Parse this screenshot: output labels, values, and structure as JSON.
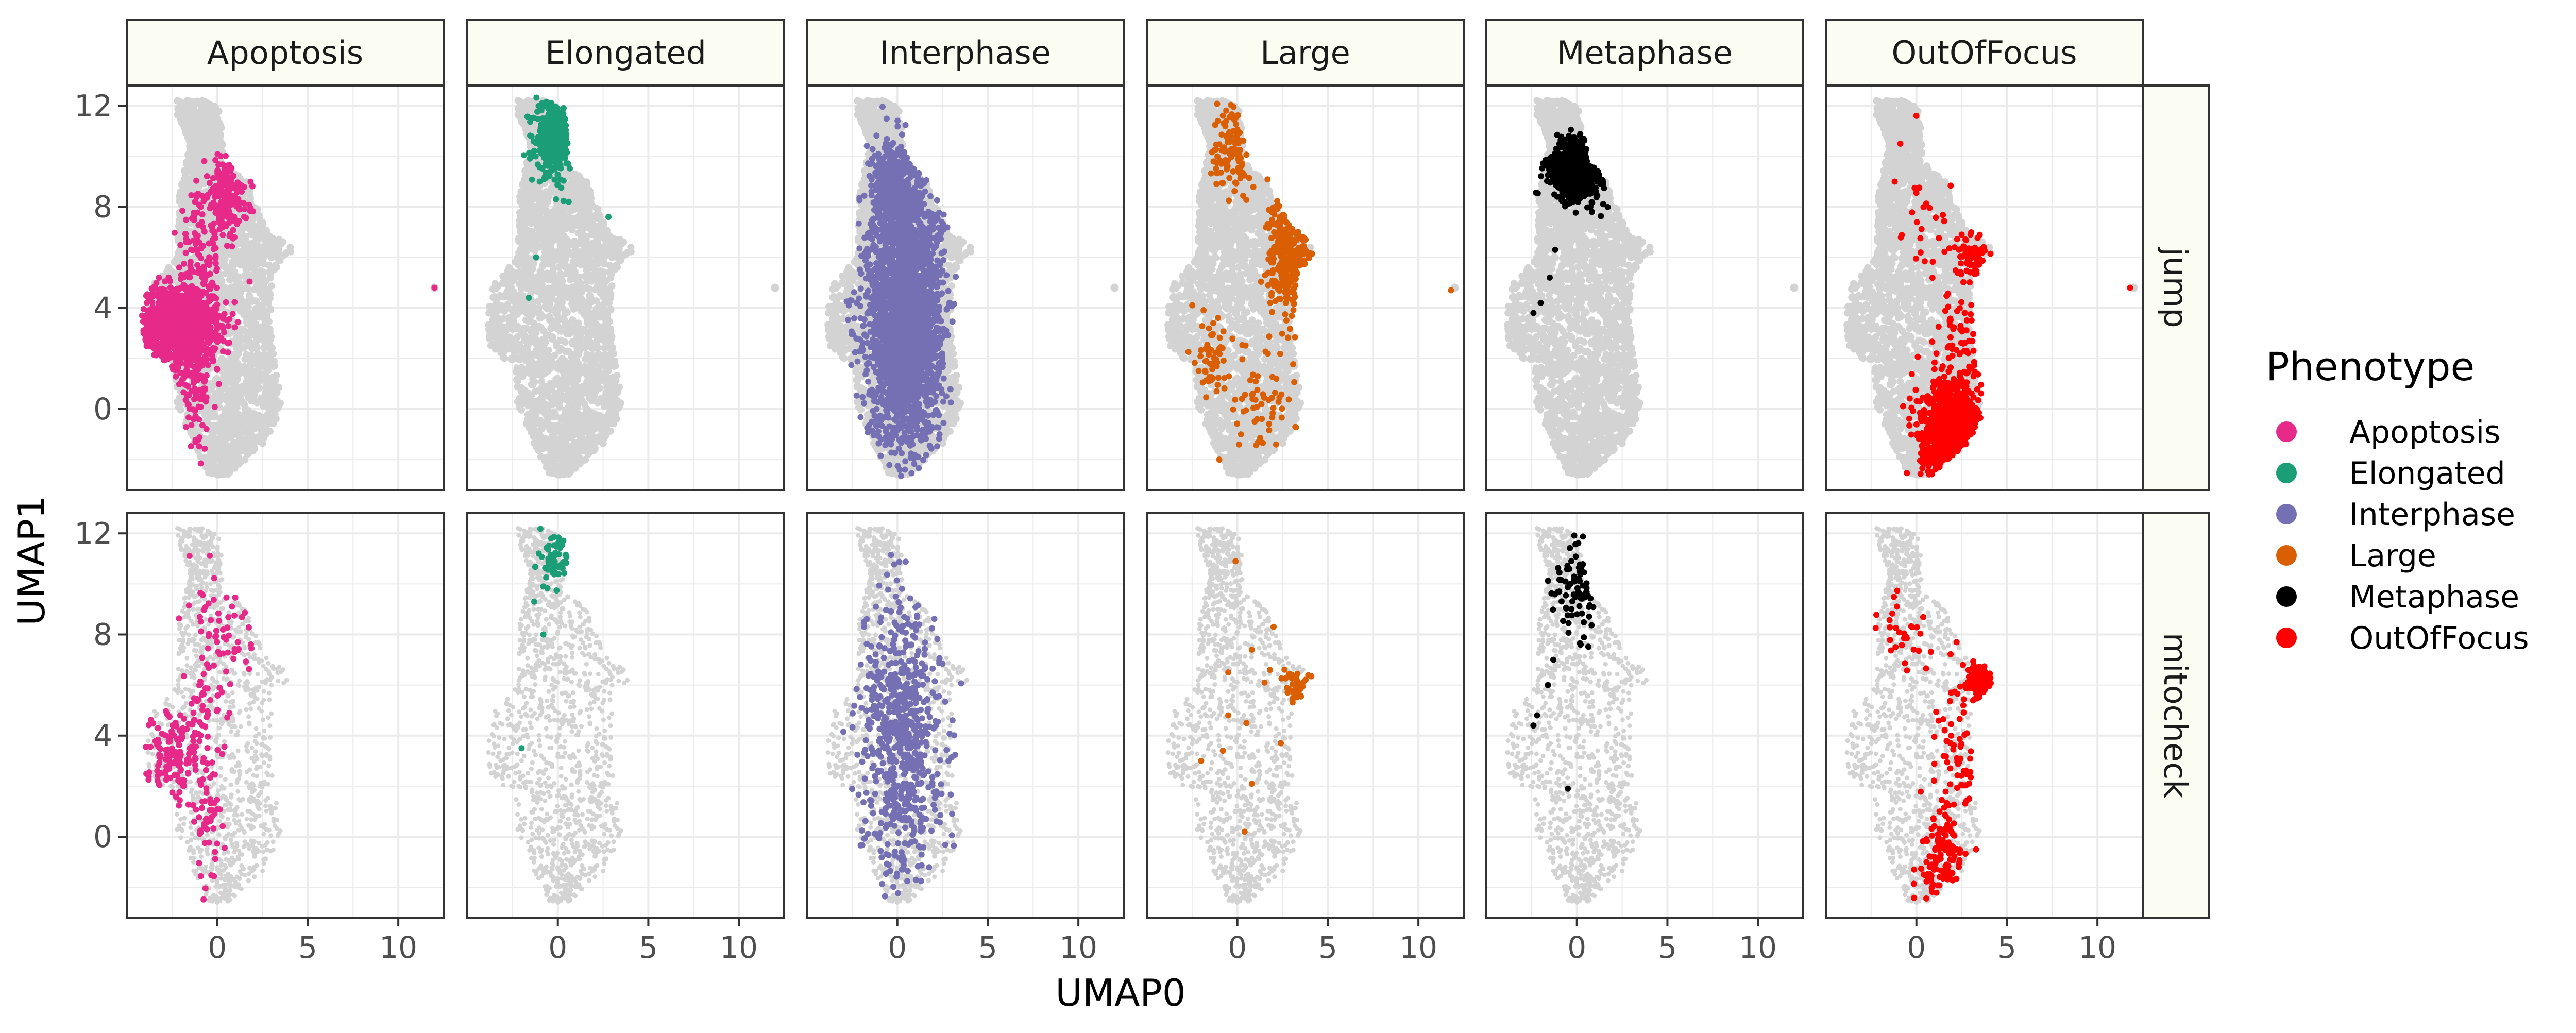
{
  "chart_data": {
    "type": "scatter",
    "xlabel": "UMAP0",
    "ylabel": "UMAP1",
    "xlim": [
      -5,
      12.5
    ],
    "ylim": [
      -3.2,
      12.8
    ],
    "x_ticks": [
      0,
      5,
      10
    ],
    "y_ticks": [
      0,
      4,
      8,
      12
    ],
    "grid": true,
    "facet_columns": [
      "Apoptosis",
      "Elongated",
      "Interphase",
      "Large",
      "Metaphase",
      "OutOfFocus"
    ],
    "facet_rows": [
      "jump",
      "mitocheck"
    ],
    "background_color": "#d3d3d3",
    "legend": {
      "title": "Phenotype",
      "position": "right",
      "entries": [
        {
          "name": "Apoptosis",
          "color": "#e7298a"
        },
        {
          "name": "Elongated",
          "color": "#1b9e77"
        },
        {
          "name": "Interphase",
          "color": "#7570b3"
        },
        {
          "name": "Large",
          "color": "#d95f02"
        },
        {
          "name": "Metaphase",
          "color": "#000000"
        },
        {
          "name": "OutOfFocus",
          "color": "#ff0000"
        }
      ]
    },
    "background_shape": {
      "left_edge": [
        [
          -2.2,
          11.6
        ],
        [
          -1.5,
          10.5
        ],
        [
          -2.1,
          8.5
        ],
        [
          -2.2,
          6.0
        ],
        [
          -3.5,
          5.0
        ],
        [
          -4.0,
          3.5
        ],
        [
          -3.6,
          2.2
        ],
        [
          -2.3,
          1.8
        ],
        [
          -2.3,
          0.3
        ],
        [
          -1.5,
          -1.2
        ],
        [
          -0.5,
          -2.5
        ]
      ],
      "right_edge": [
        [
          -0.8,
          12.2
        ],
        [
          0.1,
          11.9
        ],
        [
          0.3,
          10.6
        ],
        [
          0.3,
          9.8
        ],
        [
          1.6,
          9.0
        ],
        [
          2.5,
          7.4
        ],
        [
          4.2,
          6.3
        ],
        [
          3.0,
          5.3
        ],
        [
          3.0,
          2.6
        ],
        [
          3.6,
          0.0
        ],
        [
          2.5,
          -1.4
        ],
        [
          0.6,
          -2.6
        ]
      ],
      "outlier": [
        12.0,
        4.8
      ]
    },
    "series": [
      {
        "row": "jump",
        "name": "Apoptosis",
        "color": "#e7298a",
        "clusters": [
          {
            "cx": -2.2,
            "cy": 3.3,
            "sx": 1.1,
            "sy": 0.8,
            "n": 1200
          },
          {
            "cx": 0.5,
            "cy": 8.4,
            "sx": 0.6,
            "sy": 0.8,
            "n": 220
          },
          {
            "cx": -1.2,
            "cy": 1.3,
            "sx": 0.5,
            "sy": 1.6,
            "n": 120
          },
          {
            "cx": -1.0,
            "cy": 6.0,
            "sx": 0.6,
            "sy": 1.3,
            "n": 110
          }
        ],
        "points": [
          [
            12.0,
            4.8
          ]
        ]
      },
      {
        "row": "jump",
        "name": "Elongated",
        "color": "#1b9e77",
        "clusters": [
          {
            "cx": -0.2,
            "cy": 10.7,
            "sx": 0.5,
            "sy": 0.7,
            "n": 380
          }
        ],
        "points": [
          [
            -1.0,
            9.0
          ],
          [
            -1.2,
            6.0
          ],
          [
            -1.6,
            4.4
          ],
          [
            2.8,
            7.6
          ],
          [
            0.6,
            8.2
          ]
        ]
      },
      {
        "row": "jump",
        "name": "Interphase",
        "color": "#7570b3",
        "clusters": [
          {
            "cx": 0.4,
            "cy": 3.5,
            "sx": 1.0,
            "sy": 2.4,
            "n": 2600
          },
          {
            "cx": 0.0,
            "cy": 8.6,
            "sx": 0.7,
            "sy": 1.0,
            "n": 500
          }
        ],
        "points": [
          [
            -2.6,
            4.3
          ],
          [
            2.4,
            7.0
          ]
        ]
      },
      {
        "row": "jump",
        "name": "Large",
        "color": "#d95f02",
        "clusters": [
          {
            "cx": 2.9,
            "cy": 6.2,
            "sx": 0.6,
            "sy": 1.3,
            "n": 380
          },
          {
            "cx": -0.3,
            "cy": 10.3,
            "sx": 0.5,
            "sy": 0.9,
            "n": 110
          },
          {
            "cx": -1.4,
            "cy": 2.2,
            "sx": 0.4,
            "sy": 1.0,
            "n": 60
          },
          {
            "cx": 1.5,
            "cy": 0.3,
            "sx": 0.9,
            "sy": 1.0,
            "n": 60
          }
        ],
        "points": [
          [
            11.8,
            4.7
          ],
          [
            -1.0,
            -2.0
          ],
          [
            0.2,
            -1.0
          ]
        ]
      },
      {
        "row": "jump",
        "name": "Metaphase",
        "color": "#000000",
        "clusters": [
          {
            "cx": 0.0,
            "cy": 9.5,
            "sx": 0.7,
            "sy": 0.6,
            "n": 800
          }
        ],
        "points": [
          [
            -2.0,
            4.2
          ],
          [
            -2.4,
            3.8
          ],
          [
            -1.5,
            5.2
          ],
          [
            -1.2,
            6.3
          ]
        ]
      },
      {
        "row": "jump",
        "name": "OutOfFocus",
        "color": "#ff0000",
        "clusters": [
          {
            "cx": 1.8,
            "cy": -0.8,
            "sx": 0.8,
            "sy": 0.9,
            "n": 900
          },
          {
            "cx": 2.6,
            "cy": 2.4,
            "sx": 0.7,
            "sy": 1.3,
            "n": 90
          },
          {
            "cx": 3.2,
            "cy": 6.0,
            "sx": 0.5,
            "sy": 0.5,
            "n": 70
          },
          {
            "cx": 1.2,
            "cy": 7.5,
            "sx": 1.3,
            "sy": 2.0,
            "n": 40
          }
        ],
        "points": [
          [
            11.8,
            4.8
          ],
          [
            0.0,
            11.6
          ],
          [
            -1.2,
            9.0
          ]
        ]
      },
      {
        "row": "mitocheck",
        "name": "Apoptosis",
        "color": "#e7298a",
        "clusters": [
          {
            "cx": -2.3,
            "cy": 3.1,
            "sx": 0.9,
            "sy": 0.8,
            "n": 160
          },
          {
            "cx": -0.6,
            "cy": 0.6,
            "sx": 0.4,
            "sy": 1.1,
            "n": 50
          },
          {
            "cx": 0.4,
            "cy": 8.5,
            "sx": 0.9,
            "sy": 1.6,
            "n": 70
          },
          {
            "cx": -0.8,
            "cy": 5.3,
            "sx": 0.5,
            "sy": 1.0,
            "n": 40
          }
        ],
        "points": []
      },
      {
        "row": "mitocheck",
        "name": "Elongated",
        "color": "#1b9e77",
        "clusters": [
          {
            "cx": 0.0,
            "cy": 11.0,
            "sx": 0.4,
            "sy": 0.5,
            "n": 60
          }
        ],
        "points": [
          [
            -1.3,
            9.3
          ],
          [
            -0.8,
            8.0
          ],
          [
            -2.0,
            3.5
          ],
          [
            -0.8,
            9.9
          ]
        ]
      },
      {
        "row": "mitocheck",
        "name": "Interphase",
        "color": "#7570b3",
        "clusters": [
          {
            "cx": 0.3,
            "cy": 4.0,
            "sx": 1.1,
            "sy": 3.0,
            "n": 700
          }
        ],
        "points": []
      },
      {
        "row": "mitocheck",
        "name": "Large",
        "color": "#d95f02",
        "clusters": [
          {
            "cx": 3.2,
            "cy": 6.1,
            "sx": 0.35,
            "sy": 0.35,
            "n": 40
          }
        ],
        "points": [
          [
            -0.1,
            10.9
          ],
          [
            2.0,
            8.3
          ],
          [
            0.8,
            7.4
          ],
          [
            -0.5,
            6.5
          ],
          [
            1.5,
            6.1
          ],
          [
            -0.5,
            4.8
          ],
          [
            0.5,
            4.5
          ],
          [
            2.4,
            3.7
          ],
          [
            -2.0,
            3.0
          ],
          [
            -0.8,
            3.4
          ],
          [
            0.8,
            2.1
          ],
          [
            0.4,
            0.2
          ],
          [
            1.8,
            6.6
          ]
        ]
      },
      {
        "row": "mitocheck",
        "name": "Metaphase",
        "color": "#000000",
        "clusters": [
          {
            "cx": 0.0,
            "cy": 9.8,
            "sx": 0.6,
            "sy": 1.0,
            "n": 90
          }
        ],
        "points": [
          [
            -1.3,
            7.0
          ],
          [
            -1.6,
            6.0
          ],
          [
            -2.2,
            4.8
          ],
          [
            -2.4,
            4.4
          ],
          [
            -0.5,
            1.9
          ]
        ]
      },
      {
        "row": "mitocheck",
        "name": "OutOfFocus",
        "color": "#ff0000",
        "clusters": [
          {
            "cx": 3.5,
            "cy": 6.1,
            "sx": 0.35,
            "sy": 0.35,
            "n": 140
          },
          {
            "cx": 1.4,
            "cy": -0.8,
            "sx": 0.6,
            "sy": 0.9,
            "n": 130
          },
          {
            "cx": 2.3,
            "cy": 3.2,
            "sx": 0.6,
            "sy": 1.5,
            "n": 80
          },
          {
            "cx": -0.6,
            "cy": 8.0,
            "sx": 0.8,
            "sy": 1.0,
            "n": 30
          }
        ],
        "points": []
      }
    ]
  }
}
